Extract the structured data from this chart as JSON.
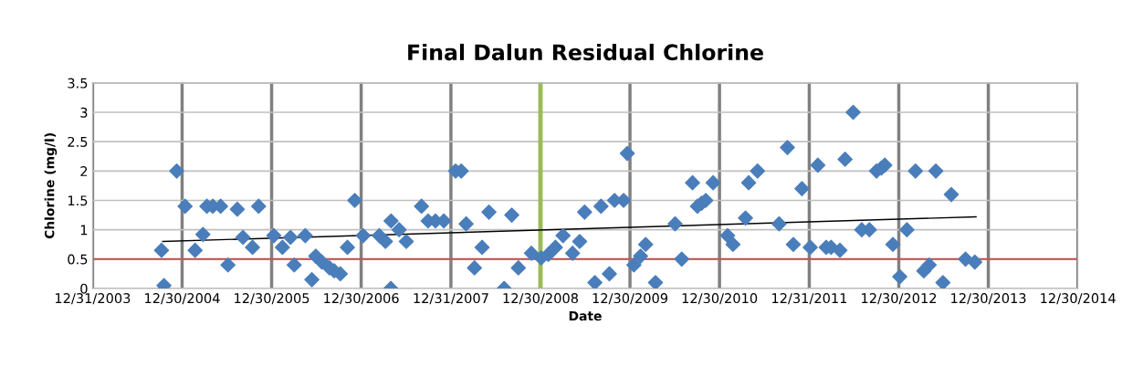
{
  "chart_data": {
    "type": "scatter",
    "title": "Final Dalun Residual Chlorine",
    "xlabel": "Date",
    "ylabel": "Chlorine (mg/l)",
    "marker": "diamond",
    "grid": true,
    "legend": false,
    "xlim": [
      "2003-12-31",
      "2014-12-30"
    ],
    "xticks": [
      {
        "value": "2003-12-31",
        "label": "12/31/2003"
      },
      {
        "value": "2004-12-30",
        "label": "12/30/2004"
      },
      {
        "value": "2005-12-30",
        "label": "12/30/2005"
      },
      {
        "value": "2006-12-30",
        "label": "12/30/2006"
      },
      {
        "value": "2007-12-31",
        "label": "12/31/2007"
      },
      {
        "value": "2008-12-30",
        "label": "12/30/2008"
      },
      {
        "value": "2009-12-30",
        "label": "12/30/2009"
      },
      {
        "value": "2010-12-30",
        "label": "12/30/2010"
      },
      {
        "value": "2011-12-31",
        "label": "12/31/2011"
      },
      {
        "value": "2012-12-30",
        "label": "12/30/2012"
      },
      {
        "value": "2013-12-30",
        "label": "12/30/2013"
      },
      {
        "value": "2014-12-30",
        "label": "12/30/2014"
      }
    ],
    "ylim": [
      0,
      3.5
    ],
    "yticks": [
      0,
      0.5,
      1,
      1.5,
      2,
      2.5,
      3,
      3.5
    ],
    "ref_lines": [
      {
        "axis": "y",
        "value": 0.5,
        "color": "#c0504d"
      },
      {
        "axis": "x",
        "value": "2008-12-30",
        "color": "#9bbb59"
      }
    ],
    "series": [
      {
        "color": "#4a7ebb",
        "x": [
          "2004-10-07",
          "2004-10-17",
          "2004-12-08",
          "2005-01-11",
          "2005-02-21",
          "2005-03-25",
          "2005-04-10",
          "2005-05-04",
          "2005-06-05",
          "2005-07-05",
          "2005-08-12",
          "2005-09-04",
          "2005-10-13",
          "2005-11-07",
          "2006-01-08",
          "2006-02-12",
          "2006-03-17",
          "2006-04-01",
          "2006-05-16",
          "2006-06-12",
          "2006-06-28",
          "2006-07-23",
          "2006-08-23",
          "2006-09-11",
          "2006-10-06",
          "2006-11-04",
          "2006-12-04",
          "2007-01-07",
          "2007-03-14",
          "2007-04-08",
          "2007-04-30",
          "2007-05-01",
          "2007-06-03",
          "2007-07-02",
          "2007-09-02",
          "2007-09-29",
          "2007-10-29",
          "2007-12-02",
          "2008-01-19",
          "2008-02-11",
          "2008-03-02",
          "2008-04-05",
          "2008-05-06",
          "2008-06-03",
          "2008-08-04",
          "2008-09-04",
          "2008-10-01",
          "2008-11-23",
          "2009-01-02",
          "2009-01-31",
          "2009-03-01",
          "2009-04-01",
          "2009-05-10",
          "2009-06-08",
          "2009-06-28",
          "2009-08-09",
          "2009-09-03",
          "2009-10-07",
          "2009-10-28",
          "2009-12-04",
          "2009-12-19",
          "2010-01-15",
          "2010-02-11",
          "2010-03-04",
          "2010-04-13",
          "2010-07-02",
          "2010-07-29",
          "2010-09-11",
          "2010-10-01",
          "2010-10-18",
          "2010-11-04",
          "2010-12-04",
          "2011-02-01",
          "2011-02-23",
          "2011-04-15",
          "2011-04-28",
          "2011-06-03",
          "2011-08-30",
          "2011-10-03",
          "2011-10-27",
          "2011-12-01",
          "2012-01-04",
          "2012-02-04",
          "2012-03-09",
          "2012-03-29",
          "2012-05-04",
          "2012-05-25",
          "2012-06-27",
          "2012-08-01",
          "2012-09-01",
          "2012-09-30",
          "2012-10-20",
          "2012-11-03",
          "2012-12-06",
          "2013-01-03",
          "2013-02-01",
          "2013-03-08",
          "2013-04-11",
          "2013-05-03",
          "2013-05-30",
          "2013-06-28",
          "2013-08-01",
          "2013-09-28",
          "2013-11-05"
        ],
        "values": [
          0.65,
          0.05,
          2.0,
          1.4,
          0.65,
          0.92,
          1.4,
          1.4,
          1.4,
          0.4,
          1.35,
          0.87,
          0.7,
          1.4,
          0.9,
          0.7,
          0.87,
          0.4,
          0.9,
          0.15,
          0.55,
          0.45,
          0.35,
          0.3,
          0.25,
          0.7,
          1.5,
          0.9,
          0.9,
          0.8,
          0.0,
          1.15,
          1.0,
          0.8,
          1.4,
          1.15,
          1.15,
          1.15,
          2.0,
          2.0,
          1.1,
          0.35,
          0.7,
          1.3,
          0.0,
          1.25,
          0.35,
          0.6,
          0.52,
          0.58,
          0.7,
          0.9,
          0.6,
          0.8,
          1.3,
          0.1,
          1.4,
          0.25,
          1.5,
          1.5,
          2.3,
          0.4,
          0.55,
          0.75,
          0.1,
          1.1,
          0.5,
          1.8,
          1.4,
          1.45,
          1.5,
          1.8,
          0.9,
          0.75,
          1.2,
          1.8,
          2.0,
          1.1,
          2.4,
          0.75,
          1.7,
          0.7,
          2.1,
          0.7,
          0.7,
          0.65,
          2.2,
          3.0,
          1.0,
          1.0,
          2.0,
          2.05,
          2.1,
          0.75,
          0.2,
          1.0,
          2.0,
          0.3,
          0.4,
          2.0,
          0.1,
          1.6,
          0.5,
          0.45
        ]
      },
      {
        "type": "line",
        "color": "#000000",
        "line_style": "solid",
        "marker": "none",
        "x": [
          "2004-10-12",
          "2013-11-10"
        ],
        "values": [
          0.8,
          1.22
        ]
      }
    ]
  }
}
